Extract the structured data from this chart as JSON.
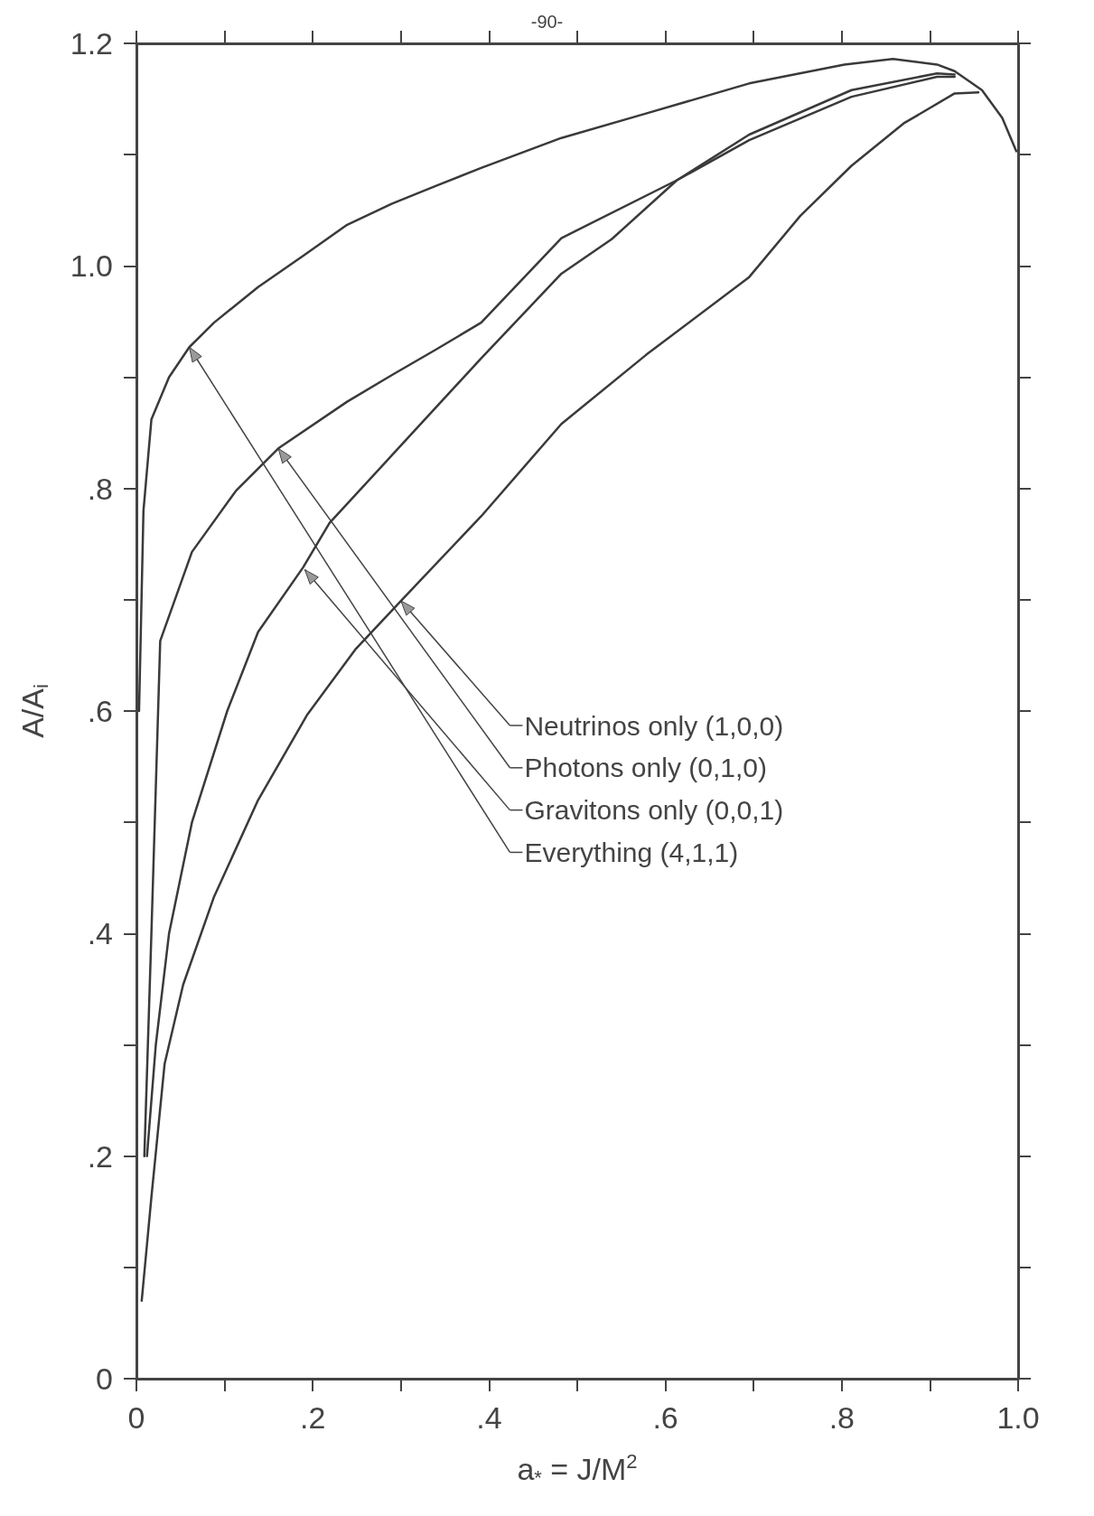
{
  "chart_data": {
    "type": "line",
    "xlabel": "a$_{*}$ = J/M$^{2}$",
    "ylabel": "A/A$_{i}$",
    "xlim": [
      0,
      1
    ],
    "ylim": [
      0,
      1.2
    ],
    "xticks": [
      0,
      {
        "value": 0.1,
        "label": null
      },
      {
        "value": 0.2,
        "label": ".2"
      },
      {
        "value": 0.3,
        "label": null
      },
      {
        "value": 0.4,
        "label": ".4"
      },
      {
        "value": 0.5,
        "label": null
      },
      {
        "value": 0.6,
        "label": ".6"
      },
      {
        "value": 0.7,
        "label": null
      },
      {
        "value": 0.8,
        "label": ".8"
      },
      {
        "value": 0.9,
        "label": null
      },
      {
        "value": 1,
        "label": "1.0"
      }
    ],
    "yticks": [
      0,
      {
        "value": 0.1,
        "label": null
      },
      {
        "value": 0.2,
        "label": ".2"
      },
      {
        "value": 0.3,
        "label": null
      },
      {
        "value": 0.4,
        "label": ".4"
      },
      {
        "value": 0.5,
        "label": null
      },
      {
        "value": 0.6,
        "label": ".6"
      },
      {
        "value": 0.7,
        "label": null
      },
      {
        "value": 0.8,
        "label": ".8"
      },
      {
        "value": 0.9,
        "label": null
      },
      {
        "value": 1,
        "label": "1.0"
      },
      {
        "value": 1.1,
        "label": null
      },
      {
        "value": 1.2,
        "label": "1.2"
      }
    ],
    "line_style": "solid",
    "series": [
      {
        "color": "#3a3a3a",
        "x": [
          0.006,
          0.017,
          0.032,
          0.053,
          0.088,
          0.138,
          0.194,
          0.249,
          0.3,
          0.391,
          0.482,
          0.578,
          0.695,
          0.753,
          0.811,
          0.87,
          0.928,
          0.955
        ],
        "values": [
          0.07,
          0.163,
          0.283,
          0.354,
          0.433,
          0.52,
          0.597,
          0.656,
          0.699,
          0.775,
          0.858,
          0.92,
          0.99,
          1.045,
          1.09,
          1.128,
          1.155,
          1.156
        ]
      },
      {
        "color": "#3a3a3a",
        "x": [
          0.009,
          0.017,
          0.027,
          0.063,
          0.113,
          0.161,
          0.239,
          0.29,
          0.34,
          0.391,
          0.482,
          0.613,
          0.695,
          0.811,
          0.908,
          0.928
        ],
        "values": [
          0.2,
          0.4,
          0.663,
          0.743,
          0.798,
          0.836,
          0.878,
          0.902,
          0.925,
          0.949,
          1.025,
          1.077,
          1.118,
          1.158,
          1.173,
          1.172
        ]
      },
      {
        "color": "#3a3a3a",
        "x": [
          0.012,
          0.022,
          0.037,
          0.063,
          0.103,
          0.138,
          0.189,
          0.219,
          0.29,
          0.391,
          0.482,
          0.539,
          0.613,
          0.695,
          0.811,
          0.908,
          0.928
        ],
        "values": [
          0.2,
          0.3,
          0.4,
          0.5,
          0.6,
          0.671,
          0.729,
          0.769,
          0.83,
          0.917,
          0.993,
          1.024,
          1.077,
          1.113,
          1.152,
          1.17,
          1.17
        ]
      },
      {
        "color": "#3a3a3a",
        "x": [
          0.003,
          0.008,
          0.017,
          0.037,
          0.06,
          0.088,
          0.138,
          0.189,
          0.239,
          0.29,
          0.34,
          0.391,
          0.482,
          0.578,
          0.695,
          0.803,
          0.858,
          0.908,
          0.928,
          0.959,
          0.982,
          0.998
        ],
        "values": [
          0.6,
          0.78,
          0.862,
          0.9,
          0.927,
          0.949,
          0.981,
          1.009,
          1.037,
          1.056,
          1.072,
          1.088,
          1.115,
          1.137,
          1.164,
          1.181,
          1.186,
          1.181,
          1.175,
          1.158,
          1.133,
          1.103
        ]
      }
    ],
    "annotations": [
      {
        "text": "Neutrinos only (1,0,0)",
        "x": 0.3,
        "y": 0.699
      },
      {
        "text": "Photons only (0,1,0)",
        "x": 0.161,
        "y": 0.836
      },
      {
        "text": "Gravitons only (0,0,1)",
        "x": 0.191,
        "y": 0.727
      },
      {
        "text": "Everything (4,1,1)",
        "x": 0.06,
        "y": 0.927
      },
      "-90-"
    ]
  }
}
